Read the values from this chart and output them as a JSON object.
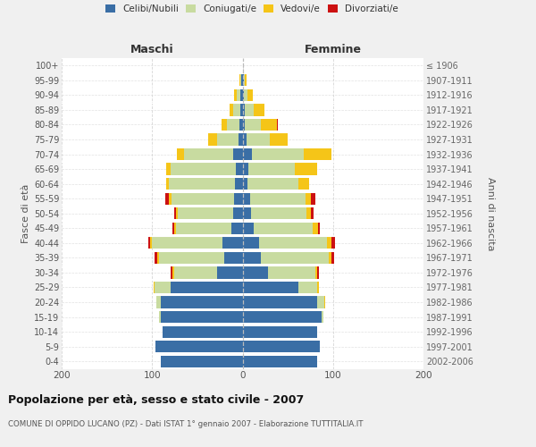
{
  "age_groups": [
    "0-4",
    "5-9",
    "10-14",
    "15-19",
    "20-24",
    "25-29",
    "30-34",
    "35-39",
    "40-44",
    "45-49",
    "50-54",
    "55-59",
    "60-64",
    "65-69",
    "70-74",
    "75-79",
    "80-84",
    "85-89",
    "90-94",
    "95-99",
    "100+"
  ],
  "birth_years": [
    "2002-2006",
    "1997-2001",
    "1992-1996",
    "1987-1991",
    "1982-1986",
    "1977-1981",
    "1972-1976",
    "1967-1971",
    "1962-1966",
    "1957-1961",
    "1952-1956",
    "1947-1951",
    "1942-1946",
    "1937-1941",
    "1932-1936",
    "1927-1931",
    "1922-1926",
    "1917-1921",
    "1912-1916",
    "1907-1911",
    "≤ 1906"
  ],
  "maschi": {
    "celibe": [
      90,
      96,
      88,
      90,
      90,
      80,
      28,
      20,
      22,
      12,
      10,
      9,
      8,
      7,
      10,
      4,
      3,
      2,
      2,
      1,
      0
    ],
    "coniugato": [
      0,
      0,
      0,
      2,
      5,
      17,
      48,
      72,
      78,
      62,
      62,
      70,
      73,
      73,
      55,
      24,
      14,
      8,
      4,
      1,
      0
    ],
    "vedovo": [
      0,
      0,
      0,
      0,
      0,
      1,
      2,
      2,
      2,
      2,
      2,
      2,
      3,
      4,
      8,
      10,
      6,
      4,
      3,
      1,
      0
    ],
    "divorziato": [
      0,
      0,
      0,
      0,
      0,
      0,
      2,
      3,
      2,
      2,
      2,
      4,
      0,
      0,
      0,
      0,
      0,
      0,
      0,
      0,
      0
    ]
  },
  "femmine": {
    "nubile": [
      82,
      85,
      82,
      87,
      82,
      62,
      28,
      20,
      18,
      12,
      9,
      8,
      5,
      6,
      10,
      4,
      2,
      2,
      1,
      1,
      0
    ],
    "coniugata": [
      0,
      0,
      0,
      2,
      8,
      20,
      52,
      75,
      75,
      66,
      62,
      62,
      57,
      52,
      58,
      26,
      18,
      10,
      4,
      1,
      0
    ],
    "vedova": [
      0,
      0,
      0,
      0,
      1,
      2,
      2,
      3,
      5,
      5,
      5,
      6,
      12,
      24,
      30,
      20,
      18,
      12,
      6,
      2,
      0
    ],
    "divorziata": [
      0,
      0,
      0,
      0,
      0,
      0,
      2,
      3,
      4,
      2,
      3,
      4,
      0,
      0,
      0,
      0,
      1,
      0,
      0,
      0,
      0
    ]
  },
  "colors": {
    "celibe_nubile": "#3a6ea5",
    "coniugato_coniugata": "#c8dba0",
    "vedovo_vedova": "#f5c518",
    "divorziato_divorziata": "#cc1111"
  },
  "xlim": 200,
  "title": "Popolazione per età, sesso e stato civile - 2007",
  "subtitle": "COMUNE DI OPPIDO LUCANO (PZ) - Dati ISTAT 1° gennaio 2007 - Elaborazione TUTTITALIA.IT",
  "ylabel_left": "Fasce di età",
  "ylabel_right": "Anni di nascita",
  "xlabel_maschi": "Maschi",
  "xlabel_femmine": "Femmine",
  "bg_color": "#f0f0f0",
  "plot_bg_color": "#ffffff"
}
